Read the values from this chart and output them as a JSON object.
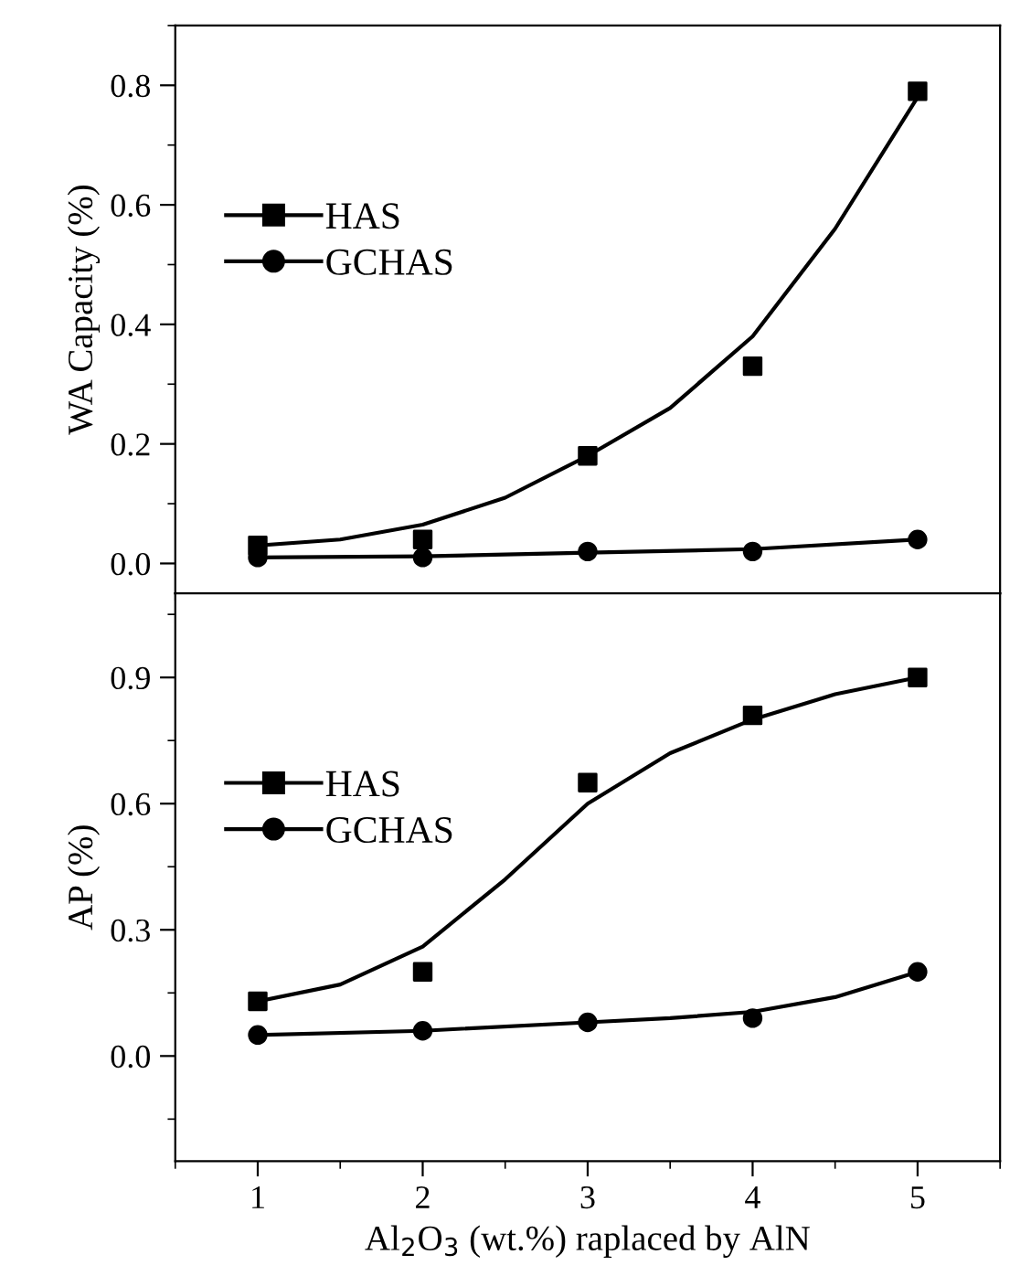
{
  "chart_data": [
    {
      "type": "scatter",
      "ylabel": "WA Capacity (%)",
      "x": [
        1,
        2,
        3,
        4,
        5
      ],
      "xlim": [
        0.5,
        5.5
      ],
      "xticks": [
        1,
        2,
        3,
        4,
        5
      ],
      "ylim": [
        -0.05,
        0.9
      ],
      "yticks": [
        {
          "value": 0,
          "label": "0.0"
        },
        0.2,
        0.4,
        0.6,
        0.8
      ],
      "tick_labels": "y",
      "legend": "top left",
      "grid": false,
      "series": [
        {
          "name": "HAS",
          "color": "#000000",
          "marker": "square",
          "values": [
            0.03,
            0.04,
            0.18,
            0.33,
            0.79
          ]
        },
        {
          "name": "GCHAS",
          "color": "#000000",
          "marker": "circle",
          "values": [
            0.01,
            0.01,
            0.02,
            0.02,
            0.04
          ]
        },
        {
          "type": "line",
          "color": "#000000",
          "x": [
            1,
            1.5,
            2,
            2.5,
            3,
            3.5,
            4,
            4.5,
            5
          ],
          "values": [
            0.03,
            0.04,
            0.065,
            0.11,
            0.18,
            0.26,
            0.38,
            0.56,
            0.78
          ]
        },
        {
          "type": "line",
          "color": "#000000",
          "x": [
            1,
            2,
            3,
            4,
            5
          ],
          "values": [
            0.01,
            0.012,
            0.018,
            0.024,
            0.04
          ]
        }
      ]
    },
    {
      "type": "scatter",
      "ylabel": "AP (%)",
      "xlabel": "Al$_{2}$O$_{3}$ (wt.%) raplaced by AlN",
      "x": [
        1,
        2,
        3,
        4,
        5
      ],
      "xlim": [
        0.5,
        5.5
      ],
      "xticks": [
        1,
        2,
        3,
        4,
        5
      ],
      "ylim": [
        -0.25,
        1.1
      ],
      "yticks": [
        {
          "value": 0,
          "label": "0.0"
        },
        0.3,
        0.6,
        0.9
      ],
      "legend": "top left",
      "grid": false,
      "series": [
        {
          "name": "HAS",
          "color": "#000000",
          "marker": "square",
          "values": [
            0.13,
            0.2,
            0.65,
            0.81,
            0.9
          ]
        },
        {
          "name": "GCHAS",
          "color": "#000000",
          "marker": "circle",
          "values": [
            0.05,
            0.06,
            0.08,
            0.09,
            0.2
          ]
        },
        {
          "type": "line",
          "color": "#000000",
          "x": [
            1,
            1.5,
            2,
            2.5,
            3,
            3.5,
            4,
            4.5,
            5
          ],
          "values": [
            0.13,
            0.17,
            0.26,
            0.42,
            0.6,
            0.72,
            0.8,
            0.86,
            0.9
          ]
        },
        {
          "type": "line",
          "color": "#000000",
          "x": [
            1,
            2,
            3,
            3.5,
            4,
            4.5,
            5
          ],
          "values": [
            0.05,
            0.06,
            0.08,
            0.09,
            0.105,
            0.14,
            0.2
          ]
        }
      ]
    }
  ]
}
